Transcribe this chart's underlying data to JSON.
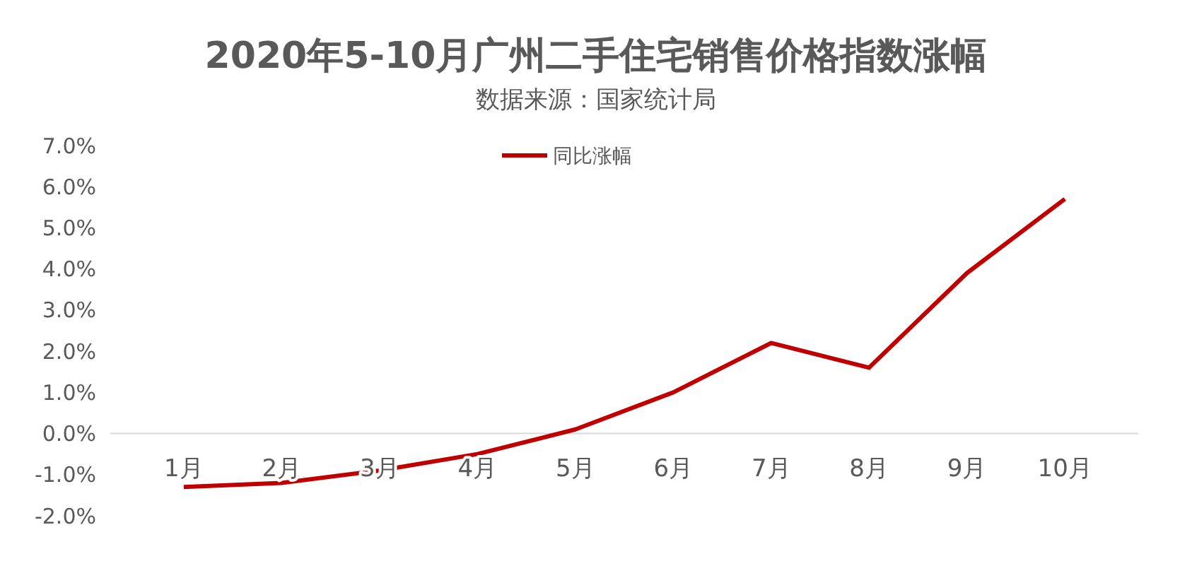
{
  "chart_data": {
    "type": "line",
    "title": "2020年5-10月广州二手住宅销售价格指数涨幅",
    "subtitle": "数据来源：国家统计局",
    "categories": [
      "1月",
      "2月",
      "3月",
      "4月",
      "5月",
      "6月",
      "7月",
      "8月",
      "9月",
      "10月"
    ],
    "series": [
      {
        "name": "同比涨幅",
        "color": "#c00000",
        "values": [
          -1.3,
          -1.2,
          -0.9,
          -0.5,
          0.1,
          1.0,
          2.2,
          1.6,
          3.9,
          5.7
        ]
      }
    ],
    "ylim": [
      -2,
      7
    ],
    "yticks": [
      {
        "value": -2,
        "label": "-2.0%"
      },
      {
        "value": -1,
        "label": "-1.0%"
      },
      {
        "value": 0,
        "label": "0.0%"
      },
      {
        "value": 1,
        "label": "1.0%"
      },
      {
        "value": 2,
        "label": "2.0%"
      },
      {
        "value": 3,
        "label": "3.0%"
      },
      {
        "value": 4,
        "label": "4.0%"
      },
      {
        "value": 5,
        "label": "5.0%"
      },
      {
        "value": 6,
        "label": "6.0%"
      },
      {
        "value": 7,
        "label": "7.0%"
      }
    ],
    "legend": "top",
    "marker": "none",
    "line_style": "solid",
    "grid": false
  }
}
